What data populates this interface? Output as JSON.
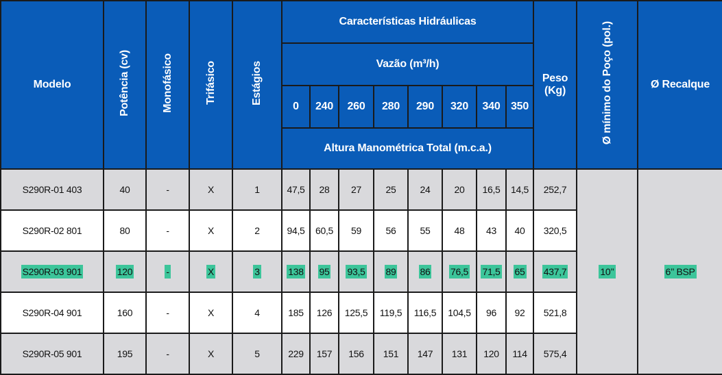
{
  "headers": {
    "modelo": "Modelo",
    "potencia": "Potência (cv)",
    "monofasico": "Monofásico",
    "trifasico": "Trifásico",
    "estagios": "Estágios",
    "caracteristicas": "Características Hidráulicas",
    "vazao": "Vazão (m³/h)",
    "flows": [
      "0",
      "240",
      "260",
      "280",
      "290",
      "320",
      "340",
      "350"
    ],
    "altura": "Altura Manométrica Total (m.c.a.)",
    "peso_line1": "Peso",
    "peso_line2": "(Kg)",
    "poco": "Ø mínimo do Poço (pol.)",
    "recalque": "Ø Recalque"
  },
  "rows": [
    {
      "modelo": "S290R-01 403",
      "potencia": "40",
      "mono": "-",
      "tri": "X",
      "estagios": "1",
      "heads": [
        "47,5",
        "28",
        "27",
        "25",
        "24",
        "20",
        "16,5",
        "14,5"
      ],
      "peso": "252,7"
    },
    {
      "modelo": "S290R-02 801",
      "potencia": "80",
      "mono": "-",
      "tri": "X",
      "estagios": "2",
      "heads": [
        "94,5",
        "60,5",
        "59",
        "56",
        "55",
        "48",
        "43",
        "40"
      ],
      "peso": "320,5"
    },
    {
      "modelo": "S290R-03 901",
      "potencia": "120",
      "mono": "-",
      "tri": "X",
      "estagios": "3",
      "heads": [
        "138",
        "95",
        "93,5",
        "89",
        "86",
        "76,5",
        "71,5",
        "65"
      ],
      "peso": "437,7"
    },
    {
      "modelo": "S290R-04 901",
      "potencia": "160",
      "mono": "-",
      "tri": "X",
      "estagios": "4",
      "heads": [
        "185",
        "126",
        "125,5",
        "119,5",
        "116,5",
        "104,5",
        "96",
        "92"
      ],
      "peso": "521,8"
    },
    {
      "modelo": "S290R-05 901",
      "potencia": "195",
      "mono": "-",
      "tri": "X",
      "estagios": "5",
      "heads": [
        "229",
        "157",
        "156",
        "151",
        "147",
        "131",
        "120",
        "114"
      ],
      "peso": "575,4"
    }
  ],
  "shared": {
    "poco": "10’’",
    "recalque": "6’’ BSP"
  },
  "highlight_color": "#3cc59a",
  "header_color": "#0a5cb8"
}
